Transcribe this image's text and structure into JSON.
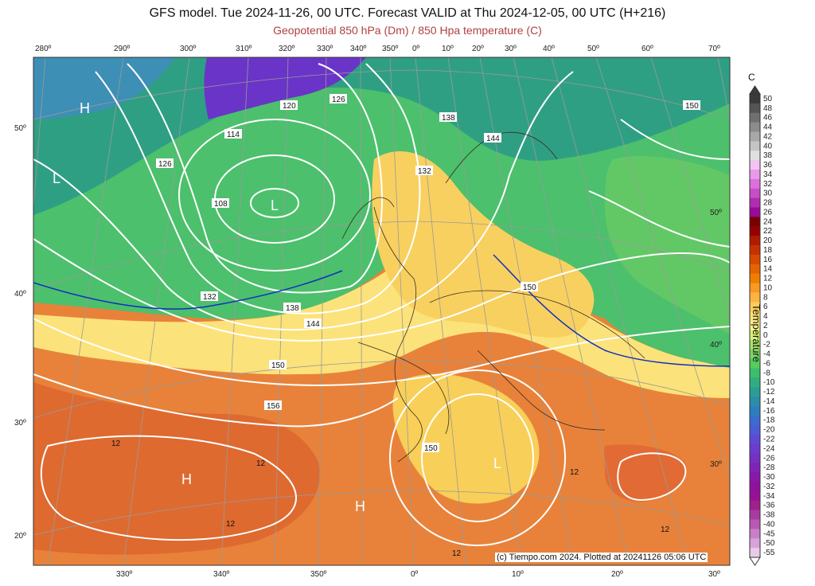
{
  "header": {
    "title": "GFS model. Tue 2024-11-26, 00 UTC. Forecast VALID at Thu 2024-12-05, 00 UTC (H+216)",
    "subtitle": "Geopotential 850 hPa (Dm) / 850 Hpa temperature (C)"
  },
  "map": {
    "top_longitudes": [
      "280º",
      "290º",
      "300º",
      "310º",
      "320º",
      "330º",
      "340º",
      "350º",
      "0º",
      "10º",
      "20º",
      "30º",
      "40º",
      "50º",
      "60º",
      "70º"
    ],
    "bottom_longitudes": [
      "330º",
      "340º",
      "350º",
      "0º",
      "10º",
      "20º",
      "30º"
    ],
    "left_latitudes": [
      "50º",
      "40º",
      "30º",
      "20º"
    ],
    "right_latitudes": [
      "50º",
      "40º",
      "30º"
    ],
    "pressure_centers": [
      "H",
      "L",
      "L",
      "H",
      "H",
      "L"
    ],
    "geopotential_labels": [
      "120",
      "126",
      "138",
      "144",
      "150",
      "114",
      "126",
      "108",
      "132",
      "132",
      "138",
      "144",
      "150",
      "156",
      "150",
      "150"
    ],
    "temperature_labels": [
      "12",
      "12",
      "12",
      "12",
      "12",
      "12"
    ],
    "credit": "(c) Tiempo.com 2024. Plotted at 20241126 05:06 UTC"
  },
  "colorbar": {
    "unit": "C",
    "axis_title": "Temperature",
    "labels": [
      "50",
      "48",
      "46",
      "44",
      "42",
      "40",
      "38",
      "36",
      "34",
      "32",
      "30",
      "28",
      "26",
      "24",
      "22",
      "20",
      "18",
      "16",
      "14",
      "12",
      "10",
      "8",
      "6",
      "4",
      "2",
      "0",
      "-2",
      "-4",
      "-6",
      "-8",
      "-10",
      "-12",
      "-14",
      "-16",
      "-18",
      "-20",
      "-22",
      "-24",
      "-26",
      "-28",
      "-30",
      "-32",
      "-34",
      "-36",
      "-38",
      "-40",
      "-45",
      "-50",
      "-55"
    ],
    "colors": [
      "#3a3a3a",
      "#555555",
      "#707070",
      "#8c8c8c",
      "#a8a8a8",
      "#c4c4c4",
      "#e0e0e0",
      "#f2c4f2",
      "#e89ae8",
      "#de70de",
      "#c84ec8",
      "#b02cb0",
      "#980a98",
      "#7a0000",
      "#960000",
      "#b21a00",
      "#c83000",
      "#d84a00",
      "#e66400",
      "#f07e00",
      "#f89a20",
      "#fcb440",
      "#fdcd5a",
      "#fee274",
      "#fef08e",
      "#d8f070",
      "#a8e46a",
      "#7cd864",
      "#54cc5e",
      "#3cbe6a",
      "#30ae80",
      "#2a9e94",
      "#2a8ea8",
      "#2e7ebc",
      "#3a6ecc",
      "#4a5cd6",
      "#5c4ad6",
      "#6c3cce",
      "#7830c4",
      "#8024b8",
      "#8818ac",
      "#9010a0",
      "#981096",
      "#a0208e",
      "#aa3aa0",
      "#b85ab4",
      "#c87ec8",
      "#d8a4d8",
      "#e8cce8"
    ]
  }
}
